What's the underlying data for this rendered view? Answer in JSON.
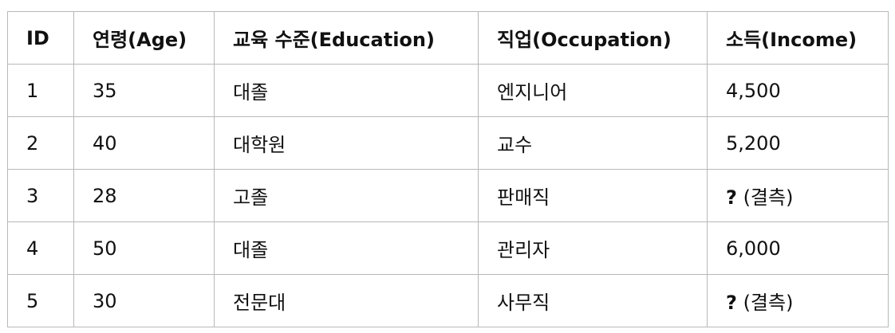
{
  "table": {
    "headers": [
      "ID",
      "연령(Age)",
      "교육 수준(Education)",
      "직업(Occupation)",
      "소득(Income)"
    ],
    "rows": [
      {
        "id": "1",
        "age": "35",
        "education": "대졸",
        "occupation": "엔지니어",
        "income": "4,500",
        "income_missing": false
      },
      {
        "id": "2",
        "age": "40",
        "education": "대학원",
        "occupation": "교수",
        "income": "5,200",
        "income_missing": false
      },
      {
        "id": "3",
        "age": "28",
        "education": "고졸",
        "occupation": "판매직",
        "income_mark": "?",
        "income_note": "(결측)",
        "income_missing": true
      },
      {
        "id": "4",
        "age": "50",
        "education": "대졸",
        "occupation": "관리자",
        "income": "6,000",
        "income_missing": false
      },
      {
        "id": "5",
        "age": "30",
        "education": "전문대",
        "occupation": "사무직",
        "income_mark": "?",
        "income_note": "(결측)",
        "income_missing": true
      }
    ]
  }
}
